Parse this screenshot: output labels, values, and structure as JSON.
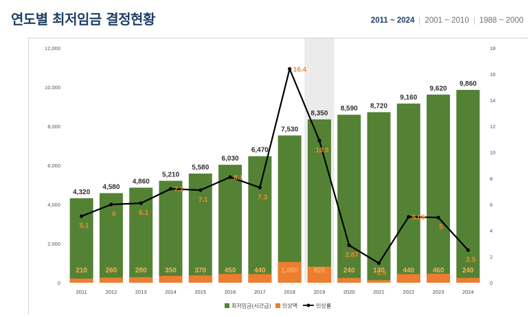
{
  "page": {
    "title": "연도별 최저임금 결정현황",
    "range_tabs": [
      {
        "label": "2011 ~ 2024",
        "active": true
      },
      {
        "label": "2001 ~ 2010",
        "active": false
      },
      {
        "label": "1988 ~ 2000",
        "active": false
      }
    ]
  },
  "colors": {
    "wage": "#548235",
    "increase": "#ed7d31",
    "rate_line": "#000000",
    "label_text": "#2f2f2f",
    "label_orange": "#ed8b2f",
    "highlight": "#ebebeb",
    "title": "#1f3f66"
  },
  "chart_data": {
    "type": "bar",
    "categories": [
      "2011",
      "2012",
      "2013",
      "2014",
      "2015",
      "2016",
      "2017",
      "2018",
      "2019",
      "2020",
      "2021",
      "2022",
      "2023",
      "2024"
    ],
    "series": [
      {
        "name": "최저임금(시간급)",
        "type": "bar",
        "axis": "left",
        "values": [
          4320,
          4580,
          4860,
          5210,
          5580,
          6030,
          6470,
          7530,
          8350,
          8590,
          8720,
          9160,
          9620,
          9860
        ],
        "labels": [
          "4,320",
          "4,580",
          "4,860",
          "5,210",
          "5,580",
          "6,030",
          "6,470",
          "7,530",
          "8,350",
          "8,590",
          "8,720",
          "9,160",
          "9,620",
          "9,860"
        ]
      },
      {
        "name": "인상액",
        "type": "bar",
        "axis": "left",
        "values": [
          210,
          260,
          280,
          350,
          370,
          450,
          440,
          1060,
          820,
          240,
          130,
          440,
          460,
          240
        ],
        "labels": [
          "210",
          "260",
          "280",
          "350",
          "370",
          "450",
          "440",
          "1,060",
          "820",
          "240",
          "130",
          "440",
          "460",
          "240"
        ]
      },
      {
        "name": "인상률",
        "type": "line",
        "axis": "right",
        "values": [
          5.1,
          6,
          6.1,
          7.2,
          7.1,
          8.1,
          7.3,
          16.4,
          10.9,
          2.87,
          1.5,
          5.05,
          5,
          2.5
        ],
        "labels": [
          "5.1",
          "6",
          "6.1",
          "7.2",
          "7.1",
          "8.1",
          "7.3",
          "16.4",
          "10.9",
          "2.87",
          "1.5",
          "5.05",
          "5",
          "2.5"
        ]
      }
    ],
    "left_axis": {
      "min": 0,
      "max": 12000,
      "ticks": [
        "0",
        "2,000",
        "4,000",
        "6,000",
        "8,000",
        "10,000",
        "12,000"
      ]
    },
    "right_axis": {
      "min": 0,
      "max": 18,
      "ticks": [
        "0",
        "2",
        "4",
        "6",
        "8",
        "10",
        "12",
        "14",
        "16",
        "18"
      ]
    },
    "highlight_category": "2019",
    "legend_position": "bottom-center",
    "grid": false
  }
}
